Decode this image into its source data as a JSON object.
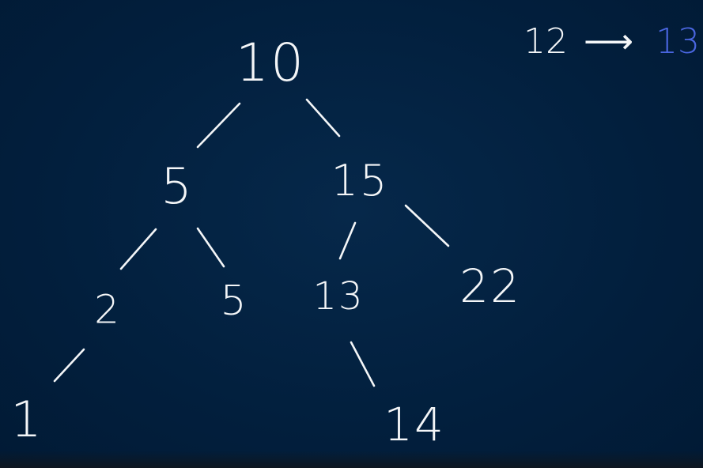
{
  "colors": {
    "background": "#021f3d",
    "ink": "#f4f6f8",
    "accent": "#4a66e0"
  },
  "tree": {
    "nodes": {
      "n10": "10",
      "n5a": "5",
      "n15": "15",
      "n2": "2",
      "n5b": "5",
      "n13": "13",
      "n22": "22",
      "n1": "1",
      "n14": "14"
    }
  },
  "annotation": {
    "from": "12",
    "arrow": "⟶",
    "to": "13"
  }
}
